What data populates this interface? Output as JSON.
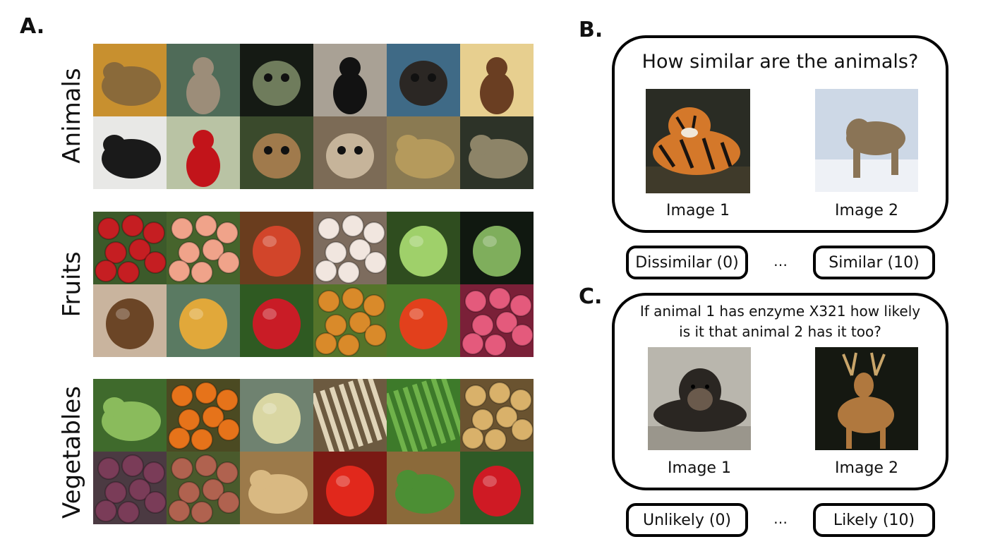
{
  "panelA": {
    "letter": "A.",
    "rows": [
      {
        "label": "Animals",
        "tiles": [
          {
            "name": "elephant-photo",
            "bg": "#c8902f",
            "fg": "#8a6a3a",
            "shape": "blob"
          },
          {
            "name": "ground-squirrel-photo",
            "bg": "#4f6b58",
            "fg": "#9c8d79",
            "shape": "standing"
          },
          {
            "name": "bushbaby-photo",
            "bg": "#151a14",
            "fg": "#6f7c5c",
            "shape": "face"
          },
          {
            "name": "colobus-monkey-photo",
            "bg": "#a9a195",
            "fg": "#121212",
            "shape": "standing"
          },
          {
            "name": "chimpanzee-photo",
            "bg": "#3f6a86",
            "fg": "#2b2724",
            "shape": "face"
          },
          {
            "name": "brown-bear-photo",
            "bg": "#e7cf8f",
            "fg": "#6a3e22",
            "shape": "standing"
          },
          {
            "name": "gibbon-photo",
            "bg": "#e8e8e6",
            "fg": "#1a1a1a",
            "shape": "blob"
          },
          {
            "name": "cardinal-bird-photo",
            "bg": "#b9c3a4",
            "fg": "#c2141a",
            "shape": "standing"
          },
          {
            "name": "loris-photo",
            "bg": "#3a4a2c",
            "fg": "#a07a4c",
            "shape": "face"
          },
          {
            "name": "bighorn-ram-photo",
            "bg": "#7c6b56",
            "fg": "#c6b49a",
            "shape": "face"
          },
          {
            "name": "cheetah-photo",
            "bg": "#8a7a52",
            "fg": "#b59a5c",
            "shape": "blob"
          },
          {
            "name": "porcupine-photo",
            "bg": "#2d3328",
            "fg": "#8d8468",
            "shape": "blob"
          }
        ]
      },
      {
        "label": "Fruits",
        "tiles": [
          {
            "name": "pomegranates-photo",
            "bg": "#3c5a2a",
            "fg": "#c51e22",
            "shape": "dots"
          },
          {
            "name": "mangoes-photo",
            "bg": "#46642c",
            "fg": "#f0a38a",
            "shape": "dots"
          },
          {
            "name": "pears-photo",
            "bg": "#6a3d1e",
            "fg": "#d2452a",
            "shape": "fruit"
          },
          {
            "name": "white-strawberries-photo",
            "bg": "#7d6c5e",
            "fg": "#f1e6df",
            "shape": "dots"
          },
          {
            "name": "green-mangoes-photo",
            "bg": "#2f4d1f",
            "fg": "#9fd06a",
            "shape": "fruit"
          },
          {
            "name": "custard-apple-photo",
            "bg": "#101810",
            "fg": "#7fae5c",
            "shape": "fruit"
          },
          {
            "name": "coconut-photo",
            "bg": "#c9b49e",
            "fg": "#6b4526",
            "shape": "fruit"
          },
          {
            "name": "pineapple-photo",
            "bg": "#5a7a62",
            "fg": "#e1a83a",
            "shape": "fruit"
          },
          {
            "name": "red-apple-photo",
            "bg": "#2f5a22",
            "fg": "#c91c26",
            "shape": "fruit"
          },
          {
            "name": "papayas-photo",
            "bg": "#55742a",
            "fg": "#d98a2a",
            "shape": "dots"
          },
          {
            "name": "red-mangoes-photo",
            "bg": "#4a7a2c",
            "fg": "#e2401c",
            "shape": "fruit"
          },
          {
            "name": "lychees-photo",
            "bg": "#7a2038",
            "fg": "#e45a7c",
            "shape": "dots"
          }
        ]
      },
      {
        "label": "Vegetables",
        "tiles": [
          {
            "name": "okra-photo",
            "bg": "#3f6a2c",
            "fg": "#8abb5c",
            "shape": "blob"
          },
          {
            "name": "pumpkins-photo",
            "bg": "#4b4a22",
            "fg": "#e6731a",
            "shape": "dots"
          },
          {
            "name": "cauliflower-photo",
            "bg": "#6f8270",
            "fg": "#d9d6a2",
            "shape": "fruit"
          },
          {
            "name": "parsnips-photo",
            "bg": "#6c5a40",
            "fg": "#e0d4b8",
            "shape": "stripes"
          },
          {
            "name": "grass-greens-photo",
            "bg": "#3d7a2a",
            "fg": "#6fb24a",
            "shape": "stripes"
          },
          {
            "name": "potatoes-photo",
            "bg": "#6a5330",
            "fg": "#d9b16a",
            "shape": "dots"
          },
          {
            "name": "beets-photo",
            "bg": "#4b3a42",
            "fg": "#7a3c58",
            "shape": "dots"
          },
          {
            "name": "red-potatoes-photo",
            "bg": "#4a5a2c",
            "fg": "#b0624f",
            "shape": "dots"
          },
          {
            "name": "ginger-photo",
            "bg": "#9c7a4a",
            "fg": "#d9b982",
            "shape": "blob"
          },
          {
            "name": "tomatoes-photo",
            "bg": "#7a1a14",
            "fg": "#e1281c",
            "shape": "fruit"
          },
          {
            "name": "arugula-photo",
            "bg": "#8b6a3a",
            "fg": "#4c8f34",
            "shape": "blob"
          },
          {
            "name": "bell-peppers-photo",
            "bg": "#2f5a26",
            "fg": "#cf1a24",
            "shape": "fruit"
          }
        ]
      }
    ]
  },
  "panelB": {
    "letter": "B.",
    "question": "How similar are the animals?",
    "image1": {
      "caption": "Image 1",
      "name": "tiger-photo",
      "bg": "#2a2c24",
      "fg": "#d4782a"
    },
    "image2": {
      "caption": "Image 2",
      "name": "cougar-photo",
      "bg": "#cdd8e6",
      "fg": "#8a7456"
    },
    "left_button": "Dissimilar (0)",
    "ellipsis": "…",
    "right_button": "Similar (10)"
  },
  "panelC": {
    "letter": "C.",
    "question_line1": "If animal 1 has enzyme X321 how likely",
    "question_line2": "is it that animal 2 has it too?",
    "image1": {
      "caption": "Image 1",
      "name": "chimpanzee-photo",
      "bg": "#b9b6ad",
      "fg": "#2a2622"
    },
    "image2": {
      "caption": "Image 2",
      "name": "deer-photo",
      "bg": "#151811",
      "fg": "#b0783e"
    },
    "left_button": "Unlikely (0)",
    "ellipsis": "…",
    "right_button": "Likely (10)"
  }
}
